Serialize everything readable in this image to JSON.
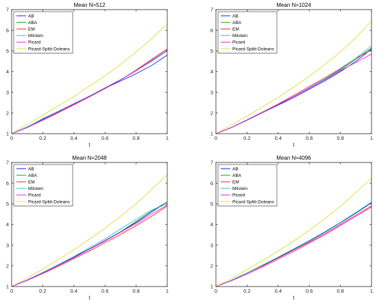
{
  "chart_data": [
    {
      "type": "line",
      "title": "Mean N=512",
      "xlabel": "t",
      "ylabel": "",
      "xlim": [
        0,
        1
      ],
      "ylim": [
        1,
        7
      ],
      "xticks": [
        "0",
        "0.2",
        "0.4",
        "0.6",
        "0.8",
        "1"
      ],
      "yticks": [
        "1",
        "2",
        "3",
        "4",
        "5",
        "6",
        "7"
      ],
      "grid": false,
      "legend_position": "top-left",
      "series": [
        {
          "name": "AB",
          "color": "#0000ff",
          "x": [
            0,
            0.1,
            0.2,
            0.3,
            0.4,
            0.5,
            0.6,
            0.7,
            0.8,
            0.9,
            1.0
          ],
          "values": [
            1.0,
            1.32,
            1.72,
            2.08,
            2.45,
            2.82,
            3.2,
            3.55,
            3.9,
            4.3,
            4.8
          ]
        },
        {
          "name": "ABA",
          "color": "#00a000",
          "x": [
            0,
            0.1,
            0.2,
            0.3,
            0.4,
            0.5,
            0.6,
            0.7,
            0.8,
            0.9,
            1.0
          ],
          "values": [
            1.0,
            1.3,
            1.68,
            2.05,
            2.42,
            2.8,
            3.2,
            3.6,
            4.05,
            4.5,
            5.0
          ]
        },
        {
          "name": "EM",
          "color": "#ff0000",
          "x": [
            0,
            0.1,
            0.2,
            0.3,
            0.4,
            0.5,
            0.6,
            0.7,
            0.8,
            0.9,
            1.0
          ],
          "values": [
            1.0,
            1.3,
            1.65,
            2.02,
            2.4,
            2.78,
            3.18,
            3.6,
            4.08,
            4.6,
            5.1
          ]
        },
        {
          "name": "Milstein",
          "color": "#00bfbf",
          "x": [
            0,
            0.1,
            0.2,
            0.3,
            0.4,
            0.5,
            0.6,
            0.7,
            0.8,
            0.9,
            1.0
          ],
          "values": [
            1.0,
            1.33,
            1.7,
            2.08,
            2.44,
            2.82,
            3.22,
            3.62,
            4.05,
            4.52,
            5.0
          ]
        },
        {
          "name": "Picard",
          "color": "#ff00ff",
          "x": [
            0,
            0.1,
            0.2,
            0.3,
            0.4,
            0.5,
            0.6,
            0.7,
            0.8,
            0.9,
            1.0
          ],
          "values": [
            1.0,
            1.3,
            1.67,
            2.05,
            2.43,
            2.8,
            3.2,
            3.6,
            4.05,
            4.55,
            5.05
          ]
        },
        {
          "name": "Picard-Splitt-Doleans",
          "color": "#d9d919",
          "x": [
            0,
            0.1,
            0.2,
            0.3,
            0.4,
            0.5,
            0.6,
            0.7,
            0.8,
            0.9,
            1.0
          ],
          "values": [
            1.0,
            1.45,
            1.9,
            2.35,
            2.8,
            3.3,
            3.8,
            4.35,
            4.95,
            5.6,
            6.3
          ]
        }
      ]
    },
    {
      "type": "line",
      "title": "Mean N=1024",
      "xlabel": "t",
      "ylabel": "",
      "xlim": [
        0,
        1
      ],
      "ylim": [
        1,
        7
      ],
      "xticks": [
        "0",
        "0.2",
        "0.4",
        "0.6",
        "0.8",
        "1"
      ],
      "yticks": [
        "1",
        "2",
        "3",
        "4",
        "5",
        "6",
        "7"
      ],
      "grid": false,
      "legend_position": "top-left",
      "series": [
        {
          "name": "AB",
          "color": "#0000ff",
          "x": [
            0,
            0.1,
            0.2,
            0.3,
            0.4,
            0.5,
            0.6,
            0.7,
            0.8,
            0.9,
            1.0
          ],
          "values": [
            1.0,
            1.3,
            1.65,
            2.02,
            2.38,
            2.75,
            3.15,
            3.55,
            4.0,
            4.5,
            5.1
          ]
        },
        {
          "name": "ABA",
          "color": "#00a000",
          "x": [
            0,
            0.1,
            0.2,
            0.3,
            0.4,
            0.5,
            0.6,
            0.7,
            0.8,
            0.9,
            1.0
          ],
          "values": [
            1.0,
            1.3,
            1.66,
            2.03,
            2.4,
            2.8,
            3.2,
            3.62,
            4.08,
            4.6,
            5.15
          ]
        },
        {
          "name": "EM",
          "color": "#ff0000",
          "x": [
            0,
            0.1,
            0.2,
            0.3,
            0.4,
            0.5,
            0.6,
            0.7,
            0.8,
            0.9,
            1.0
          ],
          "values": [
            1.0,
            1.3,
            1.67,
            2.05,
            2.44,
            2.85,
            3.28,
            3.7,
            4.15,
            4.65,
            5.05
          ]
        },
        {
          "name": "Milstein",
          "color": "#00bfbf",
          "x": [
            0,
            0.1,
            0.2,
            0.3,
            0.4,
            0.5,
            0.6,
            0.7,
            0.8,
            0.9,
            1.0
          ],
          "values": [
            1.0,
            1.31,
            1.67,
            2.04,
            2.42,
            2.8,
            3.22,
            3.65,
            4.12,
            4.65,
            5.25
          ]
        },
        {
          "name": "Picard",
          "color": "#ff00ff",
          "x": [
            0,
            0.1,
            0.2,
            0.3,
            0.4,
            0.5,
            0.6,
            0.7,
            0.8,
            0.9,
            1.0
          ],
          "values": [
            1.0,
            1.3,
            1.66,
            2.03,
            2.4,
            2.8,
            3.2,
            3.6,
            4.05,
            4.45,
            4.85
          ]
        },
        {
          "name": "Picard-Splitt-Doleans",
          "color": "#d9d919",
          "x": [
            0,
            0.1,
            0.2,
            0.3,
            0.4,
            0.5,
            0.6,
            0.7,
            0.8,
            0.9,
            1.0
          ],
          "values": [
            1.0,
            1.42,
            1.85,
            2.3,
            2.76,
            3.25,
            3.78,
            4.35,
            4.95,
            5.65,
            6.45
          ]
        }
      ]
    },
    {
      "type": "line",
      "title": "Mean N=2048",
      "xlabel": "t",
      "ylabel": "",
      "xlim": [
        0,
        1
      ],
      "ylim": [
        1,
        7
      ],
      "xticks": [
        "0",
        "0.2",
        "0.4",
        "0.6",
        "0.8",
        "1"
      ],
      "yticks": [
        "1",
        "2",
        "3",
        "4",
        "5",
        "6",
        "7"
      ],
      "grid": false,
      "legend_position": "top-left",
      "series": [
        {
          "name": "AB",
          "color": "#0000ff",
          "x": [
            0,
            0.1,
            0.2,
            0.3,
            0.4,
            0.5,
            0.6,
            0.7,
            0.8,
            0.9,
            1.0
          ],
          "values": [
            1.0,
            1.32,
            1.68,
            2.05,
            2.43,
            2.82,
            3.22,
            3.65,
            4.1,
            4.6,
            5.1
          ]
        },
        {
          "name": "ABA",
          "color": "#00a000",
          "x": [
            0,
            0.1,
            0.2,
            0.3,
            0.4,
            0.5,
            0.6,
            0.7,
            0.8,
            0.9,
            1.0
          ],
          "values": [
            1.0,
            1.3,
            1.65,
            2.02,
            2.4,
            2.8,
            3.2,
            3.65,
            4.15,
            4.65,
            5.1
          ]
        },
        {
          "name": "EM",
          "color": "#ff0000",
          "x": [
            0,
            0.1,
            0.2,
            0.3,
            0.4,
            0.5,
            0.6,
            0.7,
            0.8,
            0.9,
            1.0
          ],
          "values": [
            1.0,
            1.3,
            1.63,
            1.98,
            2.35,
            2.72,
            3.12,
            3.52,
            3.95,
            4.4,
            4.9
          ]
        },
        {
          "name": "Milstein",
          "color": "#00bfbf",
          "x": [
            0,
            0.1,
            0.2,
            0.3,
            0.4,
            0.5,
            0.6,
            0.7,
            0.8,
            0.9,
            1.0
          ],
          "values": [
            1.0,
            1.31,
            1.68,
            2.06,
            2.45,
            2.88,
            3.3,
            3.78,
            4.25,
            4.7,
            5.0
          ]
        },
        {
          "name": "Picard",
          "color": "#ff00ff",
          "x": [
            0,
            0.1,
            0.2,
            0.3,
            0.4,
            0.5,
            0.6,
            0.7,
            0.8,
            0.9,
            1.0
          ],
          "values": [
            1.0,
            1.3,
            1.65,
            2.02,
            2.4,
            2.8,
            3.2,
            3.62,
            4.05,
            4.5,
            4.95
          ]
        },
        {
          "name": "Picard-Splitt-Doleans",
          "color": "#d9d919",
          "x": [
            0,
            0.1,
            0.2,
            0.3,
            0.4,
            0.5,
            0.6,
            0.7,
            0.8,
            0.9,
            1.0
          ],
          "values": [
            1.0,
            1.42,
            1.85,
            2.3,
            2.78,
            3.3,
            3.82,
            4.4,
            5.0,
            5.7,
            6.4
          ]
        }
      ]
    },
    {
      "type": "line",
      "title": "Mean N=4096",
      "xlabel": "t",
      "ylabel": "",
      "xlim": [
        0,
        1
      ],
      "ylim": [
        1,
        7
      ],
      "xticks": [
        "0",
        "0.2",
        "0.4",
        "0.6",
        "0.8",
        "1"
      ],
      "yticks": [
        "1",
        "2",
        "3",
        "4",
        "5",
        "6",
        "7"
      ],
      "grid": false,
      "legend_position": "top-left",
      "series": [
        {
          "name": "AB",
          "color": "#0000ff",
          "x": [
            0,
            0.1,
            0.2,
            0.3,
            0.4,
            0.5,
            0.6,
            0.7,
            0.8,
            0.9,
            1.0
          ],
          "values": [
            1.0,
            1.3,
            1.65,
            2.02,
            2.4,
            2.8,
            3.2,
            3.62,
            4.08,
            4.55,
            5.05
          ]
        },
        {
          "name": "ABA",
          "color": "#00a000",
          "x": [
            0,
            0.1,
            0.2,
            0.3,
            0.4,
            0.5,
            0.6,
            0.7,
            0.8,
            0.9,
            1.0
          ],
          "values": [
            1.0,
            1.3,
            1.66,
            2.03,
            2.42,
            2.82,
            3.22,
            3.65,
            4.1,
            4.58,
            5.08
          ]
        },
        {
          "name": "EM",
          "color": "#ff0000",
          "x": [
            0,
            0.1,
            0.2,
            0.3,
            0.4,
            0.5,
            0.6,
            0.7,
            0.8,
            0.9,
            1.0
          ],
          "values": [
            1.0,
            1.3,
            1.65,
            2.0,
            2.38,
            2.76,
            3.15,
            3.55,
            4.0,
            4.45,
            4.9
          ]
        },
        {
          "name": "Milstein",
          "color": "#00bfbf",
          "x": [
            0,
            0.1,
            0.2,
            0.3,
            0.4,
            0.5,
            0.6,
            0.7,
            0.8,
            0.9,
            1.0
          ],
          "values": [
            1.0,
            1.31,
            1.66,
            2.04,
            2.42,
            2.82,
            3.22,
            3.65,
            4.1,
            4.58,
            5.08
          ]
        },
        {
          "name": "Picard",
          "color": "#ff00ff",
          "x": [
            0,
            0.1,
            0.2,
            0.3,
            0.4,
            0.5,
            0.6,
            0.7,
            0.8,
            0.9,
            1.0
          ],
          "values": [
            1.0,
            1.28,
            1.6,
            1.95,
            2.32,
            2.7,
            3.1,
            3.5,
            3.95,
            4.4,
            4.85
          ]
        },
        {
          "name": "Picard-Splitt-Doleans",
          "color": "#d9d919",
          "x": [
            0,
            0.1,
            0.2,
            0.3,
            0.4,
            0.5,
            0.6,
            0.7,
            0.8,
            0.9,
            1.0
          ],
          "values": [
            1.0,
            1.4,
            1.82,
            2.26,
            2.72,
            3.2,
            3.72,
            4.28,
            4.88,
            5.55,
            6.25
          ]
        }
      ]
    }
  ]
}
